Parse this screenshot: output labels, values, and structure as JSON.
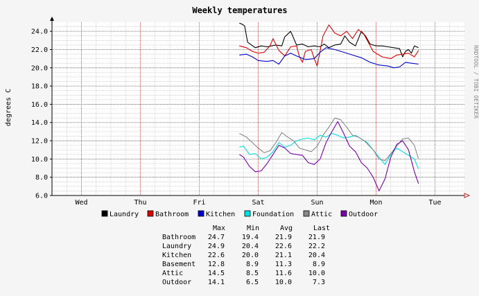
{
  "chart_data": {
    "type": "line",
    "title": "Weekly temperatures",
    "ylabel": "degrees C",
    "side_text": "RRDTOOL / TOBI OETIKER",
    "ylim": [
      6.0,
      25.0
    ],
    "yticks": [
      "6.0",
      "8.0",
      "10.0",
      "12.0",
      "14.0",
      "16.0",
      "18.0",
      "20.0",
      "22.0",
      "24.0"
    ],
    "xlim": [
      0,
      7
    ],
    "day_labels": [
      "Wed",
      "Thu",
      "Fri",
      "Sat",
      "Sun",
      "Mon",
      "Tue"
    ],
    "grid": true,
    "legend_position": "bottom",
    "series": [
      {
        "name": "Laundry",
        "color": "#000000",
        "x": [
          3.18,
          3.22,
          3.27,
          3.32,
          3.45,
          3.55,
          3.65,
          3.8,
          3.9,
          3.95,
          4.05,
          4.15,
          4.25,
          4.35,
          4.45,
          4.55,
          4.62,
          4.7,
          4.8,
          4.9,
          4.97,
          5.05,
          5.15,
          5.25,
          5.32,
          5.4,
          5.5,
          5.6,
          5.7,
          5.8,
          5.9,
          5.95,
          6.0,
          6.05,
          6.1,
          6.15,
          6.22
        ],
        "y": [
          24.9,
          24.8,
          24.6,
          22.8,
          22.2,
          22.4,
          22.3,
          22.5,
          22.4,
          23.4,
          24.0,
          22.5,
          22.6,
          22.3,
          22.4,
          22.3,
          22.6,
          22.2,
          22.5,
          22.6,
          23.5,
          22.8,
          22.4,
          24.0,
          23.5,
          22.6,
          22.4,
          22.4,
          22.3,
          22.2,
          22.1,
          21.2,
          21.8,
          22.0,
          21.6,
          22.4,
          22.2
        ]
      },
      {
        "name": "Bathroom",
        "color": "#dd0000",
        "x": [
          3.18,
          3.3,
          3.4,
          3.5,
          3.6,
          3.7,
          3.75,
          3.85,
          3.95,
          4.05,
          4.15,
          4.2,
          4.25,
          4.3,
          4.4,
          4.45,
          4.5,
          4.6,
          4.7,
          4.8,
          4.9,
          5.0,
          5.1,
          5.2,
          5.3,
          5.45,
          5.6,
          5.75,
          5.85,
          5.95,
          6.05,
          6.15,
          6.22
        ],
        "y": [
          22.4,
          22.2,
          21.8,
          21.6,
          21.7,
          22.4,
          23.2,
          21.9,
          21.3,
          22.3,
          22.4,
          21.2,
          20.6,
          21.8,
          22.0,
          21.0,
          20.2,
          23.5,
          24.7,
          23.8,
          23.5,
          24.0,
          23.2,
          24.2,
          23.6,
          21.8,
          21.2,
          21.0,
          21.4,
          21.5,
          21.6,
          21.2,
          21.9
        ]
      },
      {
        "name": "Kitchen",
        "color": "#0000cc",
        "x": [
          3.18,
          3.3,
          3.4,
          3.5,
          3.65,
          3.75,
          3.85,
          3.95,
          4.05,
          4.15,
          4.3,
          4.45,
          4.55,
          4.65,
          4.8,
          4.95,
          5.1,
          5.25,
          5.4,
          5.55,
          5.7,
          5.8,
          5.9,
          6.0,
          6.1,
          6.22
        ],
        "y": [
          21.4,
          21.5,
          21.2,
          20.8,
          20.7,
          20.8,
          20.4,
          21.3,
          21.6,
          21.3,
          20.9,
          21.0,
          21.7,
          22.2,
          22.0,
          21.7,
          21.4,
          21.1,
          20.6,
          20.3,
          20.2,
          20.0,
          20.1,
          20.6,
          20.5,
          20.4
        ]
      },
      {
        "name": "Foundation",
        "color": "#00e0e0",
        "x": [
          3.18,
          3.25,
          3.35,
          3.45,
          3.55,
          3.65,
          3.75,
          3.85,
          3.95,
          4.05,
          4.15,
          4.25,
          4.35,
          4.45,
          4.55,
          4.65,
          4.75,
          4.85,
          4.95,
          5.05,
          5.15,
          5.25,
          5.35,
          5.45,
          5.55,
          5.65,
          5.75,
          5.85,
          5.95,
          6.05,
          6.15,
          6.22
        ],
        "y": [
          11.3,
          11.4,
          10.5,
          10.6,
          10.0,
          10.2,
          10.8,
          11.8,
          11.3,
          11.5,
          12.0,
          12.2,
          12.3,
          12.1,
          12.6,
          12.4,
          12.8,
          12.6,
          12.3,
          12.4,
          12.6,
          12.2,
          11.8,
          11.0,
          10.2,
          9.4,
          10.5,
          11.2,
          10.8,
          10.4,
          10.0,
          8.9
        ]
      },
      {
        "name": "Attic",
        "color": "#888888",
        "x": [
          3.18,
          3.3,
          3.4,
          3.5,
          3.6,
          3.7,
          3.8,
          3.9,
          4.0,
          4.1,
          4.2,
          4.3,
          4.4,
          4.5,
          4.6,
          4.7,
          4.8,
          4.9,
          5.0,
          5.1,
          5.2,
          5.3,
          5.45,
          5.55,
          5.65,
          5.75,
          5.85,
          5.95,
          6.05,
          6.15,
          6.22
        ],
        "y": [
          12.8,
          12.4,
          11.8,
          11.2,
          10.7,
          10.9,
          11.8,
          12.9,
          12.4,
          12.0,
          11.2,
          11.0,
          10.8,
          11.4,
          12.6,
          13.5,
          14.5,
          14.3,
          13.5,
          12.6,
          12.4,
          12.0,
          11.0,
          10.0,
          9.8,
          10.6,
          11.4,
          12.2,
          12.3,
          11.5,
          10.0
        ]
      },
      {
        "name": "Outdoor",
        "color": "#7700aa",
        "x": [
          3.18,
          3.25,
          3.35,
          3.45,
          3.55,
          3.65,
          3.75,
          3.85,
          3.95,
          4.05,
          4.15,
          4.25,
          4.35,
          4.45,
          4.55,
          4.65,
          4.75,
          4.85,
          4.95,
          5.05,
          5.15,
          5.25,
          5.35,
          5.45,
          5.55,
          5.65,
          5.75,
          5.85,
          5.95,
          6.05,
          6.15,
          6.22
        ],
        "y": [
          10.5,
          10.2,
          9.2,
          8.6,
          8.7,
          9.5,
          10.5,
          11.5,
          11.2,
          10.6,
          10.5,
          10.4,
          9.6,
          9.4,
          10.0,
          11.8,
          13.0,
          14.1,
          12.8,
          11.4,
          10.8,
          9.6,
          9.0,
          8.0,
          6.5,
          7.8,
          10.2,
          11.6,
          12.0,
          11.0,
          8.6,
          7.3
        ]
      }
    ],
    "stats": {
      "headers": [
        "Max",
        "Min",
        "Avg",
        "Last"
      ],
      "rows": [
        {
          "label": "Bathroom",
          "max": "24.7",
          "min": "19.4",
          "avg": "21.9",
          "last": "21.9"
        },
        {
          "label": "Laundry",
          "max": "24.9",
          "min": "20.4",
          "avg": "22.6",
          "last": "22.2"
        },
        {
          "label": "Kitchen",
          "max": "22.6",
          "min": "20.0",
          "avg": "21.1",
          "last": "20.4"
        },
        {
          "label": "Basement",
          "max": "12.8",
          "min": "8.9",
          "avg": "11.3",
          "last": "8.9"
        },
        {
          "label": "Attic",
          "max": "14.5",
          "min": "8.5",
          "avg": "11.6",
          "last": "10.0"
        },
        {
          "label": "Outdoor",
          "max": "14.1",
          "min": "6.5",
          "avg": "10.0",
          "last": "7.3"
        }
      ]
    }
  }
}
